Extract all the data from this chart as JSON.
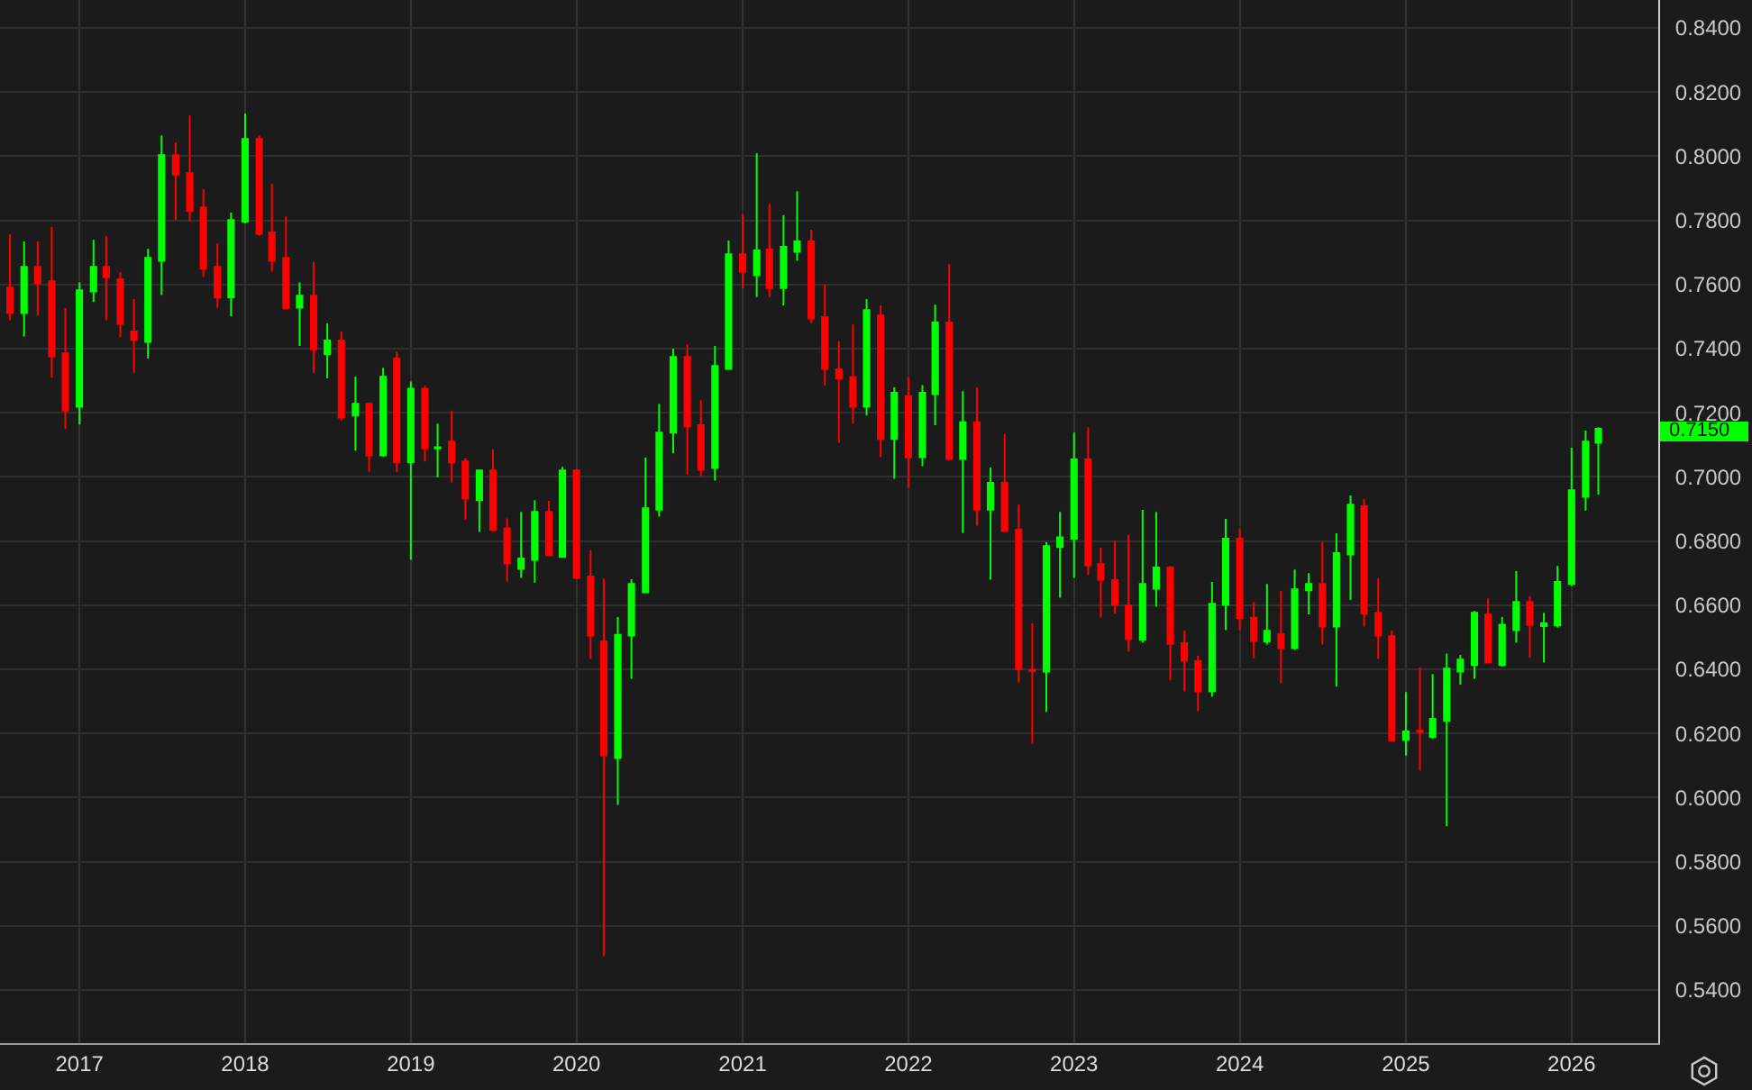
{
  "chart_data": {
    "type": "candlestick",
    "x": [
      "2016-08",
      "2016-09",
      "2016-10",
      "2016-11",
      "2016-12",
      "2017-01",
      "2017-02",
      "2017-03",
      "2017-04",
      "2017-05",
      "2017-06",
      "2017-07",
      "2017-08",
      "2017-09",
      "2017-10",
      "2017-11",
      "2017-12",
      "2018-01",
      "2018-02",
      "2018-03",
      "2018-04",
      "2018-05",
      "2018-06",
      "2018-07",
      "2018-08",
      "2018-09",
      "2018-10",
      "2018-11",
      "2018-12",
      "2019-01",
      "2019-02",
      "2019-03",
      "2019-04",
      "2019-05",
      "2019-06",
      "2019-07",
      "2019-08",
      "2019-09",
      "2019-10",
      "2019-11",
      "2019-12",
      "2020-01",
      "2020-02",
      "2020-03",
      "2020-04",
      "2020-05",
      "2020-06",
      "2020-07",
      "2020-08",
      "2020-09",
      "2020-10",
      "2020-11",
      "2020-12",
      "2021-01",
      "2021-02",
      "2021-03",
      "2021-04",
      "2021-05",
      "2021-06",
      "2021-07",
      "2021-08",
      "2021-09",
      "2021-10",
      "2021-11",
      "2021-12",
      "2022-01",
      "2022-02",
      "2022-03",
      "2022-04",
      "2022-05",
      "2022-06",
      "2022-07",
      "2022-08",
      "2022-09",
      "2022-10",
      "2022-11",
      "2022-12",
      "2023-01",
      "2023-02",
      "2023-03",
      "2023-04",
      "2023-05",
      "2023-06",
      "2023-07",
      "2023-08",
      "2023-09",
      "2023-10",
      "2023-11",
      "2023-12",
      "2024-01",
      "2024-02",
      "2024-03",
      "2024-04",
      "2024-05",
      "2024-06",
      "2024-07",
      "2024-08",
      "2024-09",
      "2024-10",
      "2024-11",
      "2024-12",
      "2025-01",
      "2025-02",
      "2025-03",
      "2025-04",
      "2025-05",
      "2025-06",
      "2025-07",
      "2025-08",
      "2025-09",
      "2025-10",
      "2025-11",
      "2025-12",
      "2026-01",
      "2026-02",
      "2026-03"
    ],
    "ohlc": [
      [
        0.759,
        0.7756,
        0.7488,
        0.7511
      ],
      [
        0.7511,
        0.7734,
        0.7438,
        0.7655
      ],
      [
        0.7655,
        0.7734,
        0.7503,
        0.7604
      ],
      [
        0.761,
        0.7779,
        0.7309,
        0.7376
      ],
      [
        0.7385,
        0.7526,
        0.7149,
        0.7207
      ],
      [
        0.7219,
        0.7606,
        0.7163,
        0.7582
      ],
      [
        0.7578,
        0.7739,
        0.7545,
        0.7655
      ],
      [
        0.7655,
        0.7752,
        0.7488,
        0.7623
      ],
      [
        0.7616,
        0.7638,
        0.7436,
        0.7477
      ],
      [
        0.7453,
        0.7554,
        0.7325,
        0.7427
      ],
      [
        0.7421,
        0.7711,
        0.7369,
        0.7683
      ],
      [
        0.7674,
        0.8065,
        0.7567,
        0.8003
      ],
      [
        0.8003,
        0.8043,
        0.7801,
        0.7943
      ],
      [
        0.7947,
        0.8127,
        0.7797,
        0.7829
      ],
      [
        0.784,
        0.7897,
        0.7623,
        0.7649
      ],
      [
        0.7655,
        0.7728,
        0.7528,
        0.756
      ],
      [
        0.756,
        0.7824,
        0.75,
        0.7801
      ],
      [
        0.7796,
        0.8133,
        0.779,
        0.8054
      ],
      [
        0.8054,
        0.8065,
        0.7752,
        0.7758
      ],
      [
        0.7762,
        0.7913,
        0.764,
        0.7674
      ],
      [
        0.7683,
        0.7812,
        0.7522,
        0.7526
      ],
      [
        0.7528,
        0.7606,
        0.7408,
        0.7565
      ],
      [
        0.7565,
        0.767,
        0.7325,
        0.7398
      ],
      [
        0.7382,
        0.7479,
        0.7307,
        0.7425
      ],
      [
        0.7425,
        0.7453,
        0.7176,
        0.7185
      ],
      [
        0.7191,
        0.7312,
        0.7082,
        0.7228
      ],
      [
        0.7228,
        0.7232,
        0.7016,
        0.7067
      ],
      [
        0.7067,
        0.734,
        0.7063,
        0.7312
      ],
      [
        0.7369,
        0.7391,
        0.7016,
        0.7045
      ],
      [
        0.7045,
        0.7297,
        0.6741,
        0.7275
      ],
      [
        0.7275,
        0.7284,
        0.7048,
        0.7089
      ],
      [
        0.7089,
        0.7166,
        0.6998,
        0.7092
      ],
      [
        0.711,
        0.7207,
        0.6983,
        0.7045
      ],
      [
        0.7048,
        0.7058,
        0.6867,
        0.6932
      ],
      [
        0.6927,
        0.702,
        0.6829,
        0.702
      ],
      [
        0.702,
        0.7086,
        0.6829,
        0.6835
      ],
      [
        0.6839,
        0.687,
        0.6674,
        0.673
      ],
      [
        0.6713,
        0.6891,
        0.6685,
        0.6745
      ],
      [
        0.6741,
        0.6927,
        0.667,
        0.6891
      ],
      [
        0.6891,
        0.6925,
        0.6754,
        0.6756
      ],
      [
        0.6751,
        0.7031,
        0.6751,
        0.702
      ],
      [
        0.702,
        0.7024,
        0.6685,
        0.6685
      ],
      [
        0.6689,
        0.6771,
        0.6432,
        0.6505
      ],
      [
        0.6487,
        0.6683,
        0.5505,
        0.6131
      ],
      [
        0.6123,
        0.6563,
        0.5977,
        0.6507
      ],
      [
        0.6505,
        0.6681,
        0.637,
        0.6666
      ],
      [
        0.664,
        0.706,
        0.664,
        0.6902
      ],
      [
        0.6898,
        0.7228,
        0.6876,
        0.7138
      ],
      [
        0.7138,
        0.74,
        0.7073,
        0.7374
      ],
      [
        0.7374,
        0.7413,
        0.7007,
        0.7157
      ],
      [
        0.7161,
        0.7239,
        0.7002,
        0.7022
      ],
      [
        0.7028,
        0.7408,
        0.6988,
        0.7346
      ],
      [
        0.7337,
        0.7737,
        0.7337,
        0.7694
      ],
      [
        0.7694,
        0.7818,
        0.7588,
        0.764
      ],
      [
        0.7629,
        0.8009,
        0.7561,
        0.7706
      ],
      [
        0.7709,
        0.7852,
        0.756,
        0.7589
      ],
      [
        0.7589,
        0.7816,
        0.7535,
        0.7717
      ],
      [
        0.7702,
        0.7891,
        0.7674,
        0.7734
      ],
      [
        0.7734,
        0.7771,
        0.7479,
        0.7494
      ],
      [
        0.7498,
        0.7599,
        0.7284,
        0.7337
      ],
      [
        0.7335,
        0.7423,
        0.7106,
        0.7307
      ],
      [
        0.7311,
        0.7475,
        0.7166,
        0.7219
      ],
      [
        0.7219,
        0.7554,
        0.7191,
        0.752
      ],
      [
        0.7503,
        0.7535,
        0.7061,
        0.7118
      ],
      [
        0.7118,
        0.7279,
        0.6994,
        0.7262
      ],
      [
        0.7252,
        0.7312,
        0.6966,
        0.7061
      ],
      [
        0.7061,
        0.7286,
        0.7033,
        0.7262
      ],
      [
        0.7258,
        0.7537,
        0.7161,
        0.7481
      ],
      [
        0.7481,
        0.7663,
        0.7056,
        0.7056
      ],
      [
        0.7056,
        0.7267,
        0.6825,
        0.717
      ],
      [
        0.717,
        0.7279,
        0.6848,
        0.6898
      ],
      [
        0.6898,
        0.703,
        0.6679,
        0.6981
      ],
      [
        0.6981,
        0.7133,
        0.6831,
        0.6831
      ],
      [
        0.6835,
        0.6913,
        0.6359,
        0.64
      ],
      [
        0.6398,
        0.6543,
        0.6168,
        0.6395
      ],
      [
        0.6393,
        0.6796,
        0.6267,
        0.6784
      ],
      [
        0.6781,
        0.6891,
        0.6623,
        0.6811
      ],
      [
        0.6807,
        0.7138,
        0.6685,
        0.7054
      ],
      [
        0.7054,
        0.7155,
        0.6694,
        0.6724
      ],
      [
        0.6728,
        0.6779,
        0.6561,
        0.6679
      ],
      [
        0.6678,
        0.6801,
        0.6573,
        0.6601
      ],
      [
        0.6599,
        0.6818,
        0.6455,
        0.6494
      ],
      [
        0.6492,
        0.6897,
        0.6483,
        0.6666
      ],
      [
        0.6651,
        0.6891,
        0.6595,
        0.6717
      ],
      [
        0.6717,
        0.6722,
        0.6367,
        0.6479
      ],
      [
        0.6481,
        0.652,
        0.6331,
        0.6427
      ],
      [
        0.6425,
        0.6442,
        0.6269,
        0.6331
      ],
      [
        0.6331,
        0.6672,
        0.6314,
        0.6604
      ],
      [
        0.6601,
        0.6869,
        0.6522,
        0.6807
      ],
      [
        0.6807,
        0.6837,
        0.6522,
        0.656
      ],
      [
        0.656,
        0.661,
        0.6434,
        0.6488
      ],
      [
        0.6487,
        0.6666,
        0.6477,
        0.652
      ],
      [
        0.6509,
        0.6644,
        0.6357,
        0.6466
      ],
      [
        0.6466,
        0.6711,
        0.646,
        0.6649
      ],
      [
        0.6646,
        0.67,
        0.6571,
        0.6666
      ],
      [
        0.6666,
        0.6796,
        0.6477,
        0.6533
      ],
      [
        0.6533,
        0.6824,
        0.6346,
        0.6762
      ],
      [
        0.6758,
        0.6942,
        0.6616,
        0.6913
      ],
      [
        0.6908,
        0.693,
        0.6533,
        0.6573
      ],
      [
        0.6576,
        0.6683,
        0.6432,
        0.6505
      ],
      [
        0.6503,
        0.652,
        0.6175,
        0.6178
      ],
      [
        0.6179,
        0.6329,
        0.6131,
        0.6206
      ],
      [
        0.6209,
        0.6406,
        0.6084,
        0.6205
      ],
      [
        0.6189,
        0.6385,
        0.6183,
        0.6245
      ],
      [
        0.6239,
        0.6449,
        0.591,
        0.6402
      ],
      [
        0.6393,
        0.6445,
        0.6352,
        0.643
      ],
      [
        0.6413,
        0.6582,
        0.637,
        0.6576
      ],
      [
        0.6571,
        0.6621,
        0.6421,
        0.6421
      ],
      [
        0.6413,
        0.6563,
        0.6408,
        0.6539
      ],
      [
        0.6522,
        0.6706,
        0.6483,
        0.661
      ],
      [
        0.661,
        0.6627,
        0.6436,
        0.6539
      ],
      [
        0.6535,
        0.6576,
        0.6421,
        0.6543
      ],
      [
        0.6537,
        0.6722,
        0.653,
        0.6672
      ],
      [
        0.6666,
        0.7091,
        0.666,
        0.6958
      ],
      [
        0.6938,
        0.7144,
        0.6895,
        0.711
      ],
      [
        0.7106,
        0.7155,
        0.6945,
        0.715
      ]
    ],
    "colors": [
      "#ff0000",
      "#00ff00",
      "#ff0000",
      "#ff0000",
      "#ff0000",
      "#00ff00",
      "#00ff00",
      "#ff0000",
      "#ff0000",
      "#ff0000",
      "#00ff00",
      "#00ff00",
      "#ff0000",
      "#ff0000",
      "#ff0000",
      "#ff0000",
      "#00ff00",
      "#00ff00",
      "#ff0000",
      "#ff0000",
      "#ff0000",
      "#00ff00",
      "#ff0000",
      "#00ff00",
      "#ff0000",
      "#00ff00",
      "#ff0000",
      "#00ff00",
      "#ff0000",
      "#00ff00",
      "#ff0000",
      "#00ff00",
      "#ff0000",
      "#ff0000",
      "#00ff00",
      "#ff0000",
      "#ff0000",
      "#00ff00",
      "#00ff00",
      "#ff0000",
      "#00ff00",
      "#ff0000",
      "#ff0000",
      "#ff0000",
      "#00ff00",
      "#00ff00",
      "#00ff00",
      "#00ff00",
      "#00ff00",
      "#ff0000",
      "#ff0000",
      "#00ff00",
      "#00ff00",
      "#ff0000",
      "#00ff00",
      "#ff0000",
      "#00ff00",
      "#00ff00",
      "#ff0000",
      "#ff0000",
      "#ff0000",
      "#ff0000",
      "#00ff00",
      "#ff0000",
      "#00ff00",
      "#ff0000",
      "#00ff00",
      "#00ff00",
      "#ff0000",
      "#00ff00",
      "#ff0000",
      "#00ff00",
      "#ff0000",
      "#ff0000",
      "#ff0000",
      "#00ff00",
      "#00ff00",
      "#00ff00",
      "#ff0000",
      "#ff0000",
      "#ff0000",
      "#ff0000",
      "#00ff00",
      "#00ff00",
      "#ff0000",
      "#ff0000",
      "#ff0000",
      "#00ff00",
      "#00ff00",
      "#ff0000",
      "#ff0000",
      "#00ff00",
      "#ff0000",
      "#00ff00",
      "#00ff00",
      "#ff0000",
      "#00ff00",
      "#00ff00",
      "#ff0000",
      "#ff0000",
      "#ff0000",
      "#00ff00",
      "#ff0000",
      "#00ff00",
      "#00ff00",
      "#00ff00",
      "#00ff00",
      "#ff0000",
      "#00ff00",
      "#00ff00",
      "#ff0000",
      "#00ff00",
      "#00ff00",
      "#00ff00",
      "#00ff00",
      "#00ff00"
    ],
    "xlim": [
      "2016-07-10",
      "2026-07-11"
    ],
    "ylim": [
      0.5234,
      0.8487
    ],
    "xticks": [
      "2017",
      "2018",
      "2019",
      "2020",
      "2021",
      "2022",
      "2023",
      "2024",
      "2025",
      "2026"
    ],
    "yticks": [
      {
        "value": 0.54,
        "label": "0.5400"
      },
      {
        "value": 0.56,
        "label": "0.5600"
      },
      {
        "value": 0.58,
        "label": "0.5800"
      },
      {
        "value": 0.6,
        "label": "0.6000"
      },
      {
        "value": 0.62,
        "label": "0.6200"
      },
      {
        "value": 0.64,
        "label": "0.6400"
      },
      {
        "value": 0.66,
        "label": "0.6600"
      },
      {
        "value": 0.68,
        "label": "0.6800"
      },
      {
        "value": 0.7,
        "label": "0.7000"
      },
      {
        "value": 0.72,
        "label": "0.7200"
      },
      {
        "value": 0.74,
        "label": "0.7400"
      },
      {
        "value": 0.76,
        "label": "0.7600"
      },
      {
        "value": 0.78,
        "label": "0.7800"
      },
      {
        "value": 0.8,
        "label": "0.8000"
      },
      {
        "value": 0.82,
        "label": "0.8200"
      },
      {
        "value": 0.84,
        "label": "0.8400"
      }
    ],
    "grid": true,
    "annotations": [
      "0.7150"
    ]
  }
}
